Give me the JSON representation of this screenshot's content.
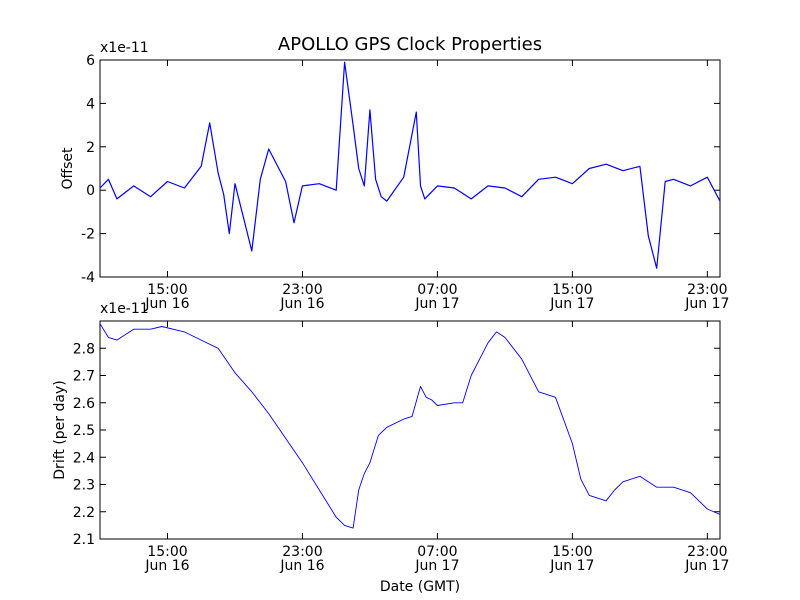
{
  "figure": {
    "title": "APOLLO GPS Clock Properties"
  },
  "chart_data": [
    {
      "type": "line",
      "title": "APOLLO GPS Clock Properties",
      "xlabel": "",
      "ylabel": "Offset",
      "y_exponent_label": "x1e-11",
      "ylim": [
        -4,
        6
      ],
      "yticks": [
        -4,
        -2,
        0,
        2,
        4,
        6
      ],
      "xlim": [
        "2014-06-16T11:00",
        "2014-06-17T23:45"
      ],
      "xticks": [
        {
          "time": "2014-06-16T15:00",
          "time_label": "15:00",
          "date_label": "Jun 16"
        },
        {
          "time": "2014-06-16T23:00",
          "time_label": "23:00",
          "date_label": "Jun 16"
        },
        {
          "time": "2014-06-17T07:00",
          "time_label": "07:00",
          "date_label": "Jun 17"
        },
        {
          "time": "2014-06-17T15:00",
          "time_label": "15:00",
          "date_label": "Jun 17"
        },
        {
          "time": "2014-06-17T23:00",
          "time_label": "23:00",
          "date_label": "Jun 17"
        }
      ],
      "series_color": "#0000ff",
      "series": [
        {
          "x": [
            "2014-06-16T11:00",
            "2014-06-16T11:30",
            "2014-06-16T12:00",
            "2014-06-16T13:00",
            "2014-06-16T14:00",
            "2014-06-16T15:00",
            "2014-06-16T16:00",
            "2014-06-16T17:00",
            "2014-06-16T17:30",
            "2014-06-16T18:00",
            "2014-06-16T18:20",
            "2014-06-16T18:40",
            "2014-06-16T19:00",
            "2014-06-16T20:00",
            "2014-06-16T20:30",
            "2014-06-16T21:00",
            "2014-06-16T22:00",
            "2014-06-16T22:30",
            "2014-06-16T23:00",
            "2014-06-17T00:00",
            "2014-06-17T01:00",
            "2014-06-17T01:30",
            "2014-06-17T02:00",
            "2014-06-17T02:20",
            "2014-06-17T02:40",
            "2014-06-17T03:00",
            "2014-06-17T03:20",
            "2014-06-17T03:40",
            "2014-06-17T04:00",
            "2014-06-17T05:00",
            "2014-06-17T05:45",
            "2014-06-17T06:00",
            "2014-06-17T06:15",
            "2014-06-17T07:00",
            "2014-06-17T08:00",
            "2014-06-17T09:00",
            "2014-06-17T10:00",
            "2014-06-17T11:00",
            "2014-06-17T12:00",
            "2014-06-17T13:00",
            "2014-06-17T14:00",
            "2014-06-17T15:00",
            "2014-06-17T16:00",
            "2014-06-17T17:00",
            "2014-06-17T18:00",
            "2014-06-17T19:00",
            "2014-06-17T19:30",
            "2014-06-17T20:00",
            "2014-06-17T20:30",
            "2014-06-17T21:00",
            "2014-06-17T22:00",
            "2014-06-17T23:00",
            "2014-06-17T23:45"
          ],
          "values": [
            0.1,
            0.5,
            -0.4,
            0.2,
            -0.3,
            0.4,
            0.1,
            1.1,
            3.1,
            0.8,
            -0.2,
            -2.0,
            0.3,
            -2.8,
            0.5,
            1.9,
            0.4,
            -1.5,
            0.2,
            0.3,
            0.0,
            5.9,
            3.0,
            1.0,
            0.2,
            3.7,
            0.5,
            -0.3,
            -0.5,
            0.6,
            3.6,
            0.2,
            -0.4,
            0.2,
            0.1,
            -0.4,
            0.2,
            0.1,
            -0.3,
            0.5,
            0.6,
            0.3,
            1.0,
            1.2,
            0.9,
            1.1,
            -2.1,
            -3.6,
            0.4,
            0.5,
            0.2,
            0.6,
            -0.5
          ]
        }
      ]
    },
    {
      "type": "line",
      "title": "",
      "xlabel": "Date (GMT)",
      "ylabel": "Drift (per day)",
      "y_exponent_label": "x1e-11",
      "ylim": [
        2.1,
        2.9
      ],
      "yticks": [
        2.1,
        2.2,
        2.3,
        2.4,
        2.5,
        2.6,
        2.7,
        2.8
      ],
      "xlim": [
        "2014-06-16T11:00",
        "2014-06-17T23:45"
      ],
      "xticks": [
        {
          "time": "2014-06-16T15:00",
          "time_label": "15:00",
          "date_label": "Jun 16"
        },
        {
          "time": "2014-06-16T23:00",
          "time_label": "23:00",
          "date_label": "Jun 16"
        },
        {
          "time": "2014-06-17T07:00",
          "time_label": "07:00",
          "date_label": "Jun 17"
        },
        {
          "time": "2014-06-17T15:00",
          "time_label": "15:00",
          "date_label": "Jun 17"
        },
        {
          "time": "2014-06-17T23:00",
          "time_label": "23:00",
          "date_label": "Jun 17"
        }
      ],
      "series_color": "#0000ff",
      "series": [
        {
          "x": [
            "2014-06-16T11:00",
            "2014-06-16T11:30",
            "2014-06-16T12:00",
            "2014-06-16T13:00",
            "2014-06-16T14:00",
            "2014-06-16T14:40",
            "2014-06-16T16:00",
            "2014-06-16T17:00",
            "2014-06-16T18:00",
            "2014-06-16T19:00",
            "2014-06-16T20:00",
            "2014-06-16T21:00",
            "2014-06-16T22:00",
            "2014-06-16T23:00",
            "2014-06-17T00:00",
            "2014-06-17T01:00",
            "2014-06-17T01:30",
            "2014-06-17T02:00",
            "2014-06-17T02:20",
            "2014-06-17T02:40",
            "2014-06-17T03:00",
            "2014-06-17T03:30",
            "2014-06-17T04:00",
            "2014-06-17T05:00",
            "2014-06-17T05:30",
            "2014-06-17T06:00",
            "2014-06-17T06:20",
            "2014-06-17T06:40",
            "2014-06-17T07:00",
            "2014-06-17T08:00",
            "2014-06-17T08:30",
            "2014-06-17T09:00",
            "2014-06-17T10:00",
            "2014-06-17T10:30",
            "2014-06-17T11:00",
            "2014-06-17T12:00",
            "2014-06-17T13:00",
            "2014-06-17T14:00",
            "2014-06-17T15:00",
            "2014-06-17T15:30",
            "2014-06-17T16:00",
            "2014-06-17T17:00",
            "2014-06-17T17:30",
            "2014-06-17T18:00",
            "2014-06-17T19:00",
            "2014-06-17T20:00",
            "2014-06-17T21:00",
            "2014-06-17T22:00",
            "2014-06-17T23:00",
            "2014-06-17T23:45"
          ],
          "values": [
            2.89,
            2.84,
            2.83,
            2.87,
            2.87,
            2.88,
            2.86,
            2.83,
            2.8,
            2.71,
            2.64,
            2.56,
            2.47,
            2.38,
            2.28,
            2.18,
            2.15,
            2.14,
            2.28,
            2.34,
            2.38,
            2.48,
            2.51,
            2.54,
            2.55,
            2.66,
            2.62,
            2.61,
            2.59,
            2.6,
            2.6,
            2.7,
            2.82,
            2.86,
            2.84,
            2.76,
            2.64,
            2.62,
            2.45,
            2.32,
            2.26,
            2.24,
            2.28,
            2.31,
            2.33,
            2.29,
            2.29,
            2.27,
            2.21,
            2.19
          ]
        }
      ]
    }
  ]
}
